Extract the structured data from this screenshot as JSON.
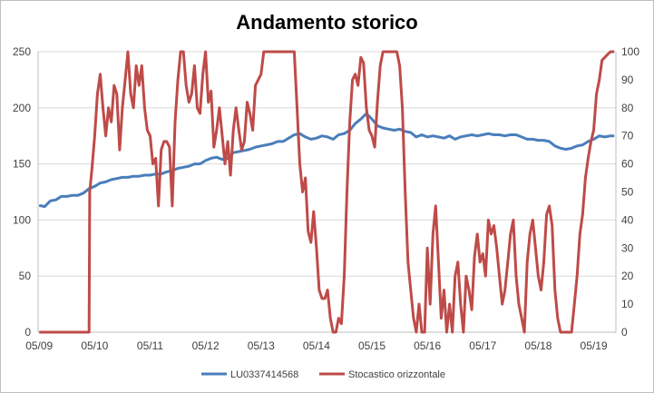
{
  "chart_data": {
    "type": "line",
    "title": "Andamento storico",
    "x_tick_labels": [
      "05/09",
      "05/10",
      "05/11",
      "05/12",
      "05/13",
      "05/14",
      "05/15",
      "05/16",
      "05/17",
      "05/18",
      "05/19"
    ],
    "y_left": {
      "ylim": [
        0,
        250
      ],
      "ticks": [
        "0",
        "50",
        "100",
        "150",
        "200",
        "250"
      ]
    },
    "y_right": {
      "ylim": [
        0,
        100
      ],
      "ticks": [
        "0",
        "10",
        "20",
        "30",
        "40",
        "50",
        "60",
        "70",
        "80",
        "90",
        "100"
      ]
    },
    "grid": true,
    "legend_position": "bottom",
    "series": [
      {
        "name": "LU0337414568",
        "color": "#4a7ebb",
        "axis": "left",
        "points": [
          [
            2009.35,
            113
          ],
          [
            2009.45,
            112
          ],
          [
            2009.55,
            117
          ],
          [
            2009.65,
            118
          ],
          [
            2009.75,
            121
          ],
          [
            2009.85,
            121
          ],
          [
            2009.95,
            122
          ],
          [
            2010.05,
            122
          ],
          [
            2010.15,
            124
          ],
          [
            2010.25,
            128
          ],
          [
            2010.35,
            130
          ],
          [
            2010.45,
            133
          ],
          [
            2010.55,
            134
          ],
          [
            2010.65,
            136
          ],
          [
            2010.75,
            137
          ],
          [
            2010.85,
            138
          ],
          [
            2010.95,
            138
          ],
          [
            2011.05,
            139
          ],
          [
            2011.15,
            139
          ],
          [
            2011.25,
            140
          ],
          [
            2011.35,
            140
          ],
          [
            2011.45,
            141
          ],
          [
            2011.55,
            141
          ],
          [
            2011.65,
            143
          ],
          [
            2011.75,
            144
          ],
          [
            2011.85,
            146
          ],
          [
            2011.95,
            147
          ],
          [
            2012.05,
            148
          ],
          [
            2012.15,
            150
          ],
          [
            2012.25,
            150
          ],
          [
            2012.35,
            153
          ],
          [
            2012.45,
            155
          ],
          [
            2012.55,
            156
          ],
          [
            2012.65,
            154
          ],
          [
            2012.75,
            155
          ],
          [
            2012.85,
            160
          ],
          [
            2012.95,
            161
          ],
          [
            2013.05,
            162
          ],
          [
            2013.15,
            163
          ],
          [
            2013.25,
            165
          ],
          [
            2013.35,
            166
          ],
          [
            2013.45,
            167
          ],
          [
            2013.55,
            168
          ],
          [
            2013.65,
            170
          ],
          [
            2013.75,
            170
          ],
          [
            2013.85,
            173
          ],
          [
            2013.95,
            176
          ],
          [
            2014.05,
            177
          ],
          [
            2014.15,
            174
          ],
          [
            2014.25,
            172
          ],
          [
            2014.35,
            173
          ],
          [
            2014.45,
            175
          ],
          [
            2014.55,
            174
          ],
          [
            2014.65,
            172
          ],
          [
            2014.75,
            176
          ],
          [
            2014.85,
            177
          ],
          [
            2014.95,
            180
          ],
          [
            2015.05,
            186
          ],
          [
            2015.15,
            190
          ],
          [
            2015.25,
            195
          ],
          [
            2015.35,
            190
          ],
          [
            2015.45,
            184
          ],
          [
            2015.55,
            182
          ],
          [
            2015.65,
            181
          ],
          [
            2015.75,
            180
          ],
          [
            2015.85,
            181
          ],
          [
            2015.95,
            179
          ],
          [
            2016.05,
            178
          ],
          [
            2016.15,
            174
          ],
          [
            2016.25,
            176
          ],
          [
            2016.35,
            174
          ],
          [
            2016.45,
            175
          ],
          [
            2016.55,
            174
          ],
          [
            2016.65,
            173
          ],
          [
            2016.75,
            175
          ],
          [
            2016.85,
            172
          ],
          [
            2016.95,
            174
          ],
          [
            2017.05,
            175
          ],
          [
            2017.15,
            176
          ],
          [
            2017.25,
            175
          ],
          [
            2017.35,
            176
          ],
          [
            2017.45,
            177
          ],
          [
            2017.55,
            176
          ],
          [
            2017.65,
            176
          ],
          [
            2017.75,
            175
          ],
          [
            2017.85,
            176
          ],
          [
            2017.95,
            176
          ],
          [
            2018.05,
            174
          ],
          [
            2018.15,
            172
          ],
          [
            2018.25,
            172
          ],
          [
            2018.35,
            171
          ],
          [
            2018.45,
            171
          ],
          [
            2018.55,
            170
          ],
          [
            2018.65,
            166
          ],
          [
            2018.75,
            164
          ],
          [
            2018.85,
            163
          ],
          [
            2018.95,
            164
          ],
          [
            2019.05,
            166
          ],
          [
            2019.15,
            167
          ],
          [
            2019.25,
            170
          ],
          [
            2019.35,
            172
          ],
          [
            2019.45,
            175
          ],
          [
            2019.55,
            174
          ],
          [
            2019.65,
            175
          ],
          [
            2019.72,
            175
          ]
        ]
      },
      {
        "name": "Stocastico orizzontale",
        "color": "#be4b48",
        "axis": "right",
        "points": [
          [
            2009.35,
            0
          ],
          [
            2010.25,
            0
          ],
          [
            2010.26,
            50
          ],
          [
            2010.3,
            58
          ],
          [
            2010.35,
            70
          ],
          [
            2010.4,
            85
          ],
          [
            2010.45,
            92
          ],
          [
            2010.5,
            80
          ],
          [
            2010.55,
            70
          ],
          [
            2010.6,
            80
          ],
          [
            2010.65,
            75
          ],
          [
            2010.7,
            88
          ],
          [
            2010.75,
            85
          ],
          [
            2010.8,
            65
          ],
          [
            2010.85,
            80
          ],
          [
            2010.9,
            90
          ],
          [
            2010.95,
            100
          ],
          [
            2011.0,
            85
          ],
          [
            2011.05,
            80
          ],
          [
            2011.1,
            95
          ],
          [
            2011.15,
            88
          ],
          [
            2011.2,
            95
          ],
          [
            2011.25,
            80
          ],
          [
            2011.3,
            72
          ],
          [
            2011.35,
            70
          ],
          [
            2011.4,
            60
          ],
          [
            2011.45,
            62
          ],
          [
            2011.5,
            45
          ],
          [
            2011.55,
            65
          ],
          [
            2011.6,
            68
          ],
          [
            2011.65,
            68
          ],
          [
            2011.7,
            66
          ],
          [
            2011.75,
            45
          ],
          [
            2011.8,
            75
          ],
          [
            2011.85,
            90
          ],
          [
            2011.9,
            100
          ],
          [
            2011.95,
            100
          ],
          [
            2012.0,
            88
          ],
          [
            2012.05,
            82
          ],
          [
            2012.1,
            85
          ],
          [
            2012.15,
            95
          ],
          [
            2012.2,
            80
          ],
          [
            2012.25,
            78
          ],
          [
            2012.3,
            92
          ],
          [
            2012.35,
            100
          ],
          [
            2012.4,
            82
          ],
          [
            2012.45,
            86
          ],
          [
            2012.5,
            66
          ],
          [
            2012.55,
            72
          ],
          [
            2012.6,
            80
          ],
          [
            2012.65,
            70
          ],
          [
            2012.7,
            60
          ],
          [
            2012.75,
            68
          ],
          [
            2012.8,
            56
          ],
          [
            2012.85,
            72
          ],
          [
            2012.9,
            80
          ],
          [
            2012.95,
            72
          ],
          [
            2013.0,
            65
          ],
          [
            2013.05,
            68
          ],
          [
            2013.1,
            82
          ],
          [
            2013.15,
            78
          ],
          [
            2013.2,
            72
          ],
          [
            2013.25,
            88
          ],
          [
            2013.3,
            90
          ],
          [
            2013.35,
            92
          ],
          [
            2013.4,
            100
          ],
          [
            2013.45,
            100
          ],
          [
            2013.5,
            100
          ],
          [
            2013.55,
            100
          ],
          [
            2013.6,
            100
          ],
          [
            2013.65,
            100
          ],
          [
            2013.7,
            100
          ],
          [
            2013.75,
            100
          ],
          [
            2013.8,
            100
          ],
          [
            2013.85,
            100
          ],
          [
            2013.9,
            100
          ],
          [
            2013.95,
            100
          ],
          [
            2014.0,
            80
          ],
          [
            2014.05,
            60
          ],
          [
            2014.1,
            50
          ],
          [
            2014.15,
            55
          ],
          [
            2014.2,
            36
          ],
          [
            2014.25,
            32
          ],
          [
            2014.3,
            43
          ],
          [
            2014.35,
            30
          ],
          [
            2014.4,
            15
          ],
          [
            2014.45,
            12
          ],
          [
            2014.5,
            12
          ],
          [
            2014.55,
            15
          ],
          [
            2014.6,
            5
          ],
          [
            2014.65,
            0
          ],
          [
            2014.7,
            0
          ],
          [
            2014.75,
            5
          ],
          [
            2014.8,
            3
          ],
          [
            2014.85,
            20
          ],
          [
            2014.9,
            50
          ],
          [
            2014.95,
            75
          ],
          [
            2015.0,
            90
          ],
          [
            2015.05,
            92
          ],
          [
            2015.1,
            88
          ],
          [
            2015.15,
            98
          ],
          [
            2015.2,
            96
          ],
          [
            2015.25,
            80
          ],
          [
            2015.3,
            72
          ],
          [
            2015.35,
            70
          ],
          [
            2015.4,
            66
          ],
          [
            2015.45,
            82
          ],
          [
            2015.5,
            95
          ],
          [
            2015.55,
            100
          ],
          [
            2015.6,
            100
          ],
          [
            2015.65,
            100
          ],
          [
            2015.7,
            100
          ],
          [
            2015.75,
            100
          ],
          [
            2015.8,
            100
          ],
          [
            2015.85,
            95
          ],
          [
            2015.9,
            80
          ],
          [
            2015.95,
            50
          ],
          [
            2016.0,
            25
          ],
          [
            2016.05,
            15
          ],
          [
            2016.1,
            5
          ],
          [
            2016.15,
            0
          ],
          [
            2016.2,
            10
          ],
          [
            2016.25,
            0
          ],
          [
            2016.3,
            0
          ],
          [
            2016.35,
            30
          ],
          [
            2016.4,
            10
          ],
          [
            2016.45,
            35
          ],
          [
            2016.5,
            45
          ],
          [
            2016.55,
            25
          ],
          [
            2016.6,
            5
          ],
          [
            2016.65,
            15
          ],
          [
            2016.7,
            0
          ],
          [
            2016.75,
            10
          ],
          [
            2016.8,
            0
          ],
          [
            2016.85,
            20
          ],
          [
            2016.9,
            25
          ],
          [
            2016.95,
            10
          ],
          [
            2017.0,
            0
          ],
          [
            2017.05,
            20
          ],
          [
            2017.1,
            15
          ],
          [
            2017.15,
            8
          ],
          [
            2017.2,
            27
          ],
          [
            2017.25,
            35
          ],
          [
            2017.3,
            25
          ],
          [
            2017.35,
            28
          ],
          [
            2017.4,
            20
          ],
          [
            2017.45,
            40
          ],
          [
            2017.5,
            35
          ],
          [
            2017.55,
            38
          ],
          [
            2017.6,
            30
          ],
          [
            2017.65,
            20
          ],
          [
            2017.7,
            10
          ],
          [
            2017.75,
            15
          ],
          [
            2017.8,
            25
          ],
          [
            2017.85,
            35
          ],
          [
            2017.9,
            40
          ],
          [
            2017.95,
            20
          ],
          [
            2018.0,
            10
          ],
          [
            2018.05,
            5
          ],
          [
            2018.1,
            0
          ],
          [
            2018.15,
            25
          ],
          [
            2018.2,
            35
          ],
          [
            2018.25,
            40
          ],
          [
            2018.3,
            30
          ],
          [
            2018.35,
            20
          ],
          [
            2018.4,
            15
          ],
          [
            2018.45,
            25
          ],
          [
            2018.5,
            42
          ],
          [
            2018.55,
            45
          ],
          [
            2018.6,
            38
          ],
          [
            2018.65,
            15
          ],
          [
            2018.7,
            5
          ],
          [
            2018.75,
            0
          ],
          [
            2018.85,
            0
          ],
          [
            2018.95,
            0
          ],
          [
            2019.0,
            10
          ],
          [
            2019.05,
            20
          ],
          [
            2019.1,
            35
          ],
          [
            2019.15,
            42
          ],
          [
            2019.2,
            55
          ],
          [
            2019.25,
            62
          ],
          [
            2019.3,
            68
          ],
          [
            2019.35,
            72
          ],
          [
            2019.4,
            85
          ],
          [
            2019.45,
            90
          ],
          [
            2019.5,
            97
          ],
          [
            2019.55,
            98
          ],
          [
            2019.6,
            99
          ],
          [
            2019.65,
            100
          ],
          [
            2019.72,
            100
          ]
        ]
      }
    ]
  }
}
